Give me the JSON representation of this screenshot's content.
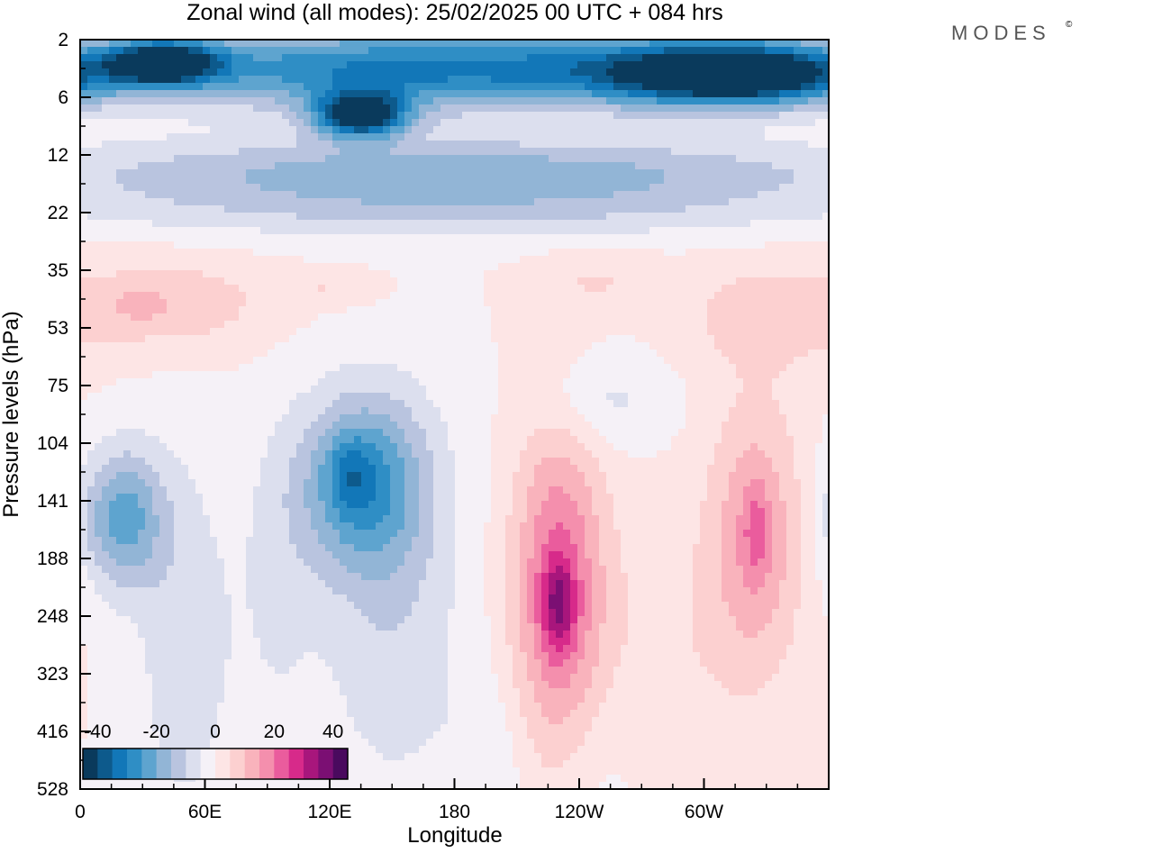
{
  "chart_data": {
    "type": "heatmap",
    "title": "Zonal wind (all modes):  25/02/2025  00 UTC  + 084 hrs",
    "logo": "MODES",
    "logo_mark": "©",
    "xlabel": "Longitude",
    "ylabel": "Pressure levels (hPa)",
    "x_ticks": [
      "0",
      "60E",
      "120E",
      "180",
      "120W",
      "60W"
    ],
    "x_tick_values": [
      0,
      60,
      120,
      180,
      240,
      300
    ],
    "xlim": [
      0,
      360
    ],
    "y_ticks": [
      "2",
      "6",
      "12",
      "22",
      "35",
      "53",
      "75",
      "104",
      "141",
      "188",
      "248",
      "323",
      "416",
      "528"
    ],
    "colorbar": {
      "labels": [
        "-40",
        "-20",
        "0",
        "20",
        "40"
      ],
      "levels": [
        -40,
        -35,
        -30,
        -25,
        -20,
        -15,
        -10,
        -5,
        0,
        5,
        10,
        15,
        20,
        25,
        30,
        35,
        40
      ],
      "colors": [
        "#0a3a5c",
        "#0d5a8c",
        "#1277b8",
        "#2f8ec5",
        "#5ea4cf",
        "#92b5d6",
        "#b9c4df",
        "#dcdfee",
        "#f5f1f7",
        "#fde5e5",
        "#fcd0d0",
        "#f9b3bc",
        "#f48fad",
        "#ea5c9d",
        "#d72a8a",
        "#a8167c",
        "#7b0f73",
        "#4a0a5e"
      ]
    },
    "features": [
      {
        "x": 180,
        "y": 0.5,
        "rx": 190,
        "ry": 0.7,
        "v": -32
      },
      {
        "x": 40,
        "y": 0.4,
        "rx": 25,
        "ry": 0.35,
        "v": -42
      },
      {
        "x": 135,
        "y": 1.3,
        "rx": 22,
        "ry": 0.4,
        "v": -44
      },
      {
        "x": 315,
        "y": 0.6,
        "rx": 55,
        "ry": 0.5,
        "v": -45
      },
      {
        "x": 180,
        "y": 2.3,
        "rx": 200,
        "ry": 0.6,
        "v": -18
      },
      {
        "x": 180,
        "y": 3.0,
        "rx": 200,
        "ry": 0.5,
        "v": -8
      },
      {
        "x": 45,
        "y": 4.6,
        "rx": 45,
        "ry": 0.8,
        "v": 9
      },
      {
        "x": 28,
        "y": 4.6,
        "rx": 12,
        "ry": 0.3,
        "v": 4
      },
      {
        "x": 330,
        "y": 4.8,
        "rx": 40,
        "ry": 0.9,
        "v": 8
      },
      {
        "x": 250,
        "y": 4.2,
        "rx": 30,
        "ry": 0.5,
        "v": 5
      },
      {
        "x": 120,
        "y": 4.3,
        "rx": 25,
        "ry": 0.3,
        "v": 5
      },
      {
        "x": 20,
        "y": 8.3,
        "rx": 20,
        "ry": 1.2,
        "v": -22
      },
      {
        "x": 135,
        "y": 7.7,
        "rx": 30,
        "ry": 1.5,
        "v": -24
      },
      {
        "x": 130,
        "y": 7.5,
        "rx": 10,
        "ry": 0.6,
        "v": -8
      },
      {
        "x": 150,
        "y": 9.8,
        "rx": 35,
        "ry": 3.5,
        "v": -9
      },
      {
        "x": 50,
        "y": 10.5,
        "rx": 25,
        "ry": 3.5,
        "v": -8
      },
      {
        "x": 95,
        "y": 9.5,
        "rx": 20,
        "ry": 3,
        "v": -5
      },
      {
        "x": 250,
        "y": 6.3,
        "rx": 30,
        "ry": 0.8,
        "v": -7
      },
      {
        "x": 230,
        "y": 9.5,
        "rx": 22,
        "ry": 2.8,
        "v": 22
      },
      {
        "x": 230,
        "y": 9.8,
        "rx": 8,
        "ry": 0.8,
        "v": 16
      },
      {
        "x": 325,
        "y": 8.6,
        "rx": 22,
        "ry": 2.3,
        "v": 15
      },
      {
        "x": 325,
        "y": 8.5,
        "rx": 6,
        "ry": 0.8,
        "v": 8
      },
      {
        "x": 285,
        "y": 10.5,
        "rx": 40,
        "ry": 2.5,
        "v": 4
      },
      {
        "x": 195,
        "y": 12.5,
        "rx": 20,
        "ry": 1.5,
        "v": -4
      },
      {
        "x": 248,
        "y": 12.5,
        "rx": 20,
        "ry": 1.5,
        "v": -3
      }
    ]
  }
}
